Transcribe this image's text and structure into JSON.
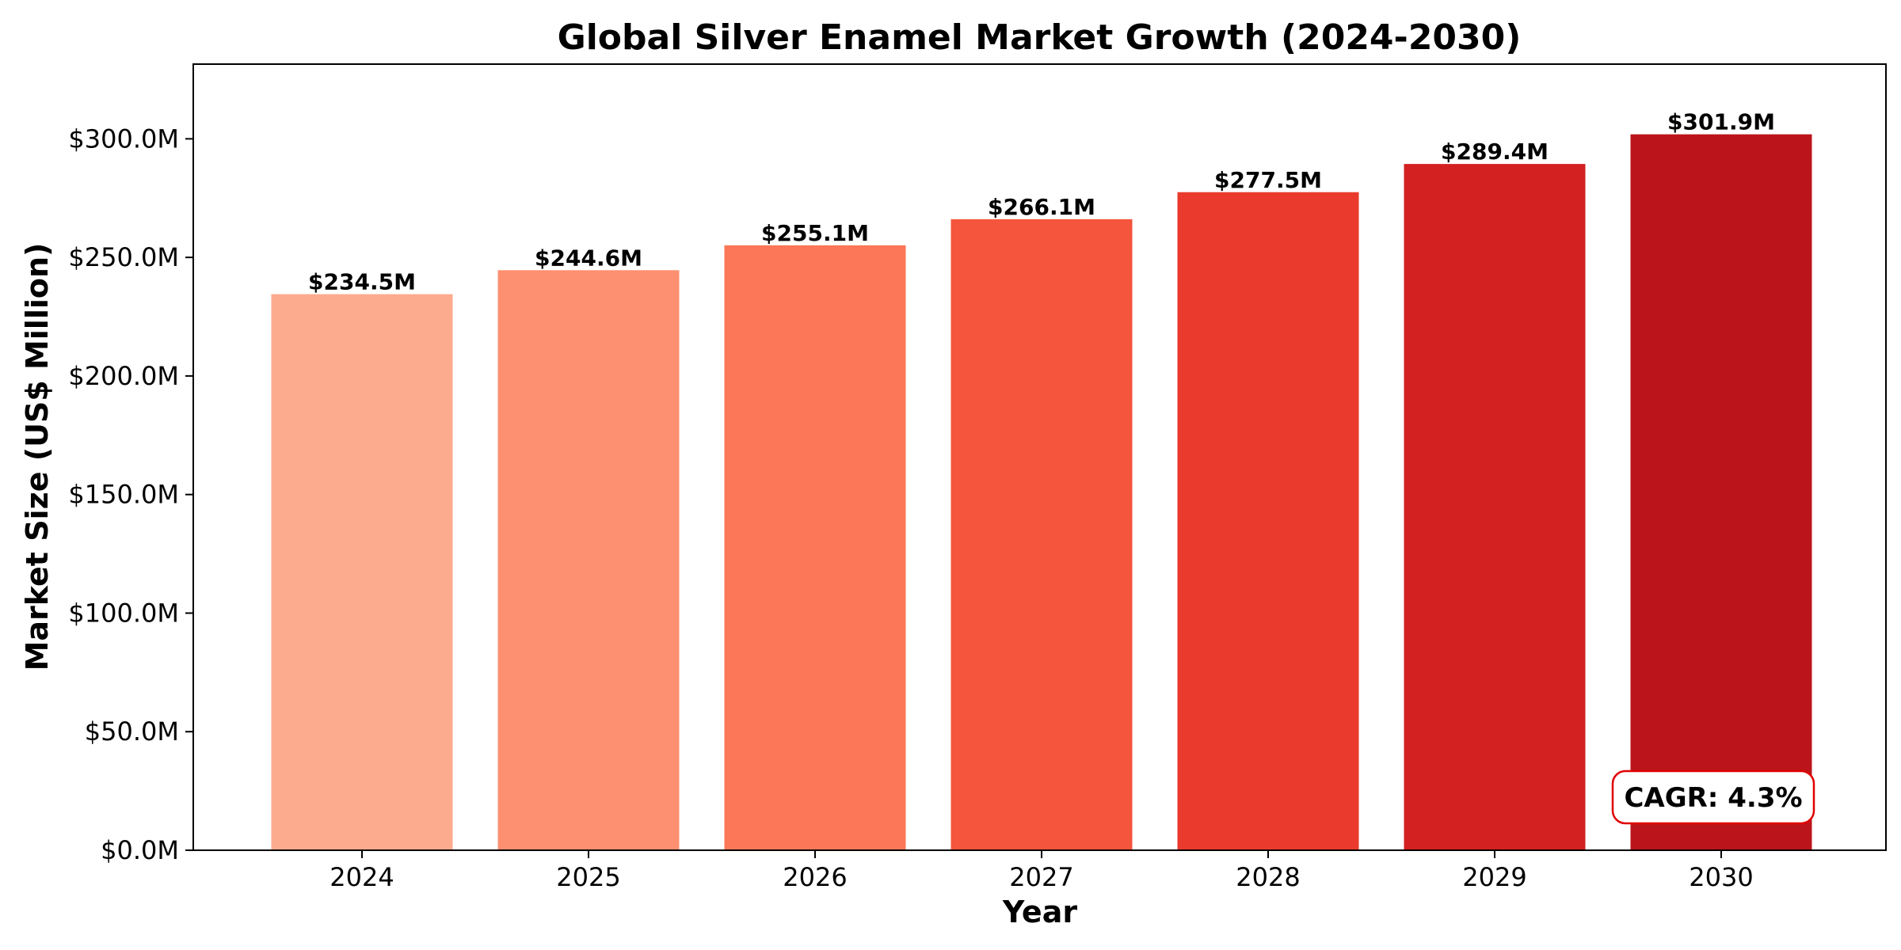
{
  "chart_data": {
    "type": "bar",
    "title": "Global Silver Enamel Market Growth (2024-2030)",
    "xlabel": "Year",
    "ylabel": "Market Size (US$ Million)",
    "categories": [
      "2024",
      "2025",
      "2026",
      "2027",
      "2028",
      "2029",
      "2030"
    ],
    "values": [
      234.5,
      244.6,
      255.1,
      266.1,
      277.5,
      289.4,
      301.9
    ],
    "value_labels": [
      "$234.5M",
      "$244.6M",
      "$255.1M",
      "$266.1M",
      "$277.5M",
      "$289.4M",
      "$301.9M"
    ],
    "colors": [
      "#fcab8f",
      "#fc9070",
      "#fb7757",
      "#f5553d",
      "#ea3a2e",
      "#d32020",
      "#bb151b"
    ],
    "ylim": [
      0,
      331.5
    ],
    "yticks": [
      0,
      50,
      100,
      150,
      200,
      250,
      300
    ],
    "ytick_labels": [
      "$0.0M",
      "$50.0M",
      "$100.0M",
      "$150.0M",
      "$200.0M",
      "$250.0M",
      "$300.0M"
    ],
    "grid": false,
    "legend": "none",
    "annotation": {
      "text": "CAGR: 4.3%",
      "placement": "bottom-right",
      "border_color": "#e00000"
    }
  }
}
